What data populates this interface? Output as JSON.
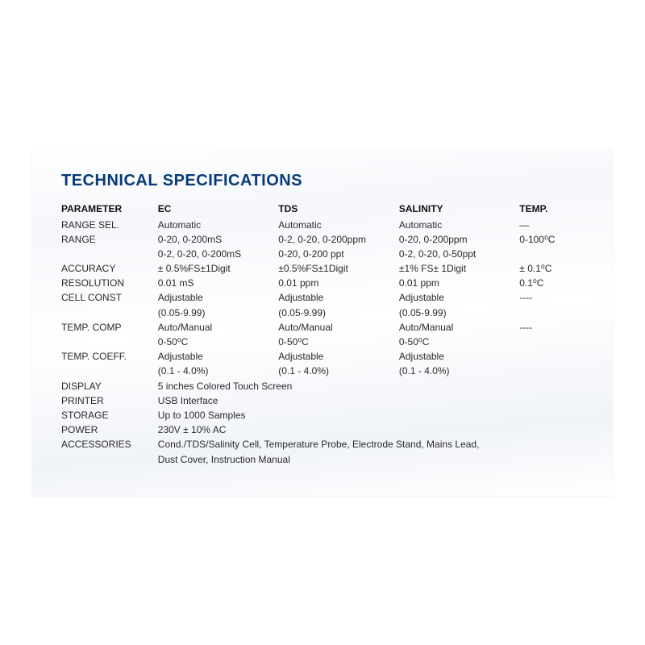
{
  "title": "TECHNICAL SPECIFICATIONS",
  "headers": {
    "parameter": "PARAMETER",
    "ec": "EC",
    "tds": "TDS",
    "salinity": "SALINITY",
    "temp": "TEMP."
  },
  "rows": {
    "range_sel": {
      "label": "RANGE SEL.",
      "ec": "Automatic",
      "tds": "Automatic",
      "salinity": "Automatic",
      "temp": "—"
    },
    "range": {
      "label": "RANGE",
      "ec_l1": "0-20, 0-200mS",
      "ec_l2": "0-2, 0-20, 0-200mS",
      "tds_l1": "0-2, 0-20, 0-200ppm",
      "tds_l2": "0-20, 0-200 ppt",
      "sal_l1": "0-20, 0-200ppm",
      "sal_l2": "0-2, 0-20, 0-50ppt",
      "temp": "0-100⁰C"
    },
    "accuracy": {
      "label": "ACCURACY",
      "ec": "± 0.5%FS±1Digit",
      "tds": "±0.5%FS±1Digit",
      "salinity": "±1% FS± 1Digit",
      "temp": "± 0.1⁰C"
    },
    "resolution": {
      "label": "RESOLUTION",
      "ec": "0.01 mS",
      "tds": "0.01 ppm",
      "salinity": "0.01 ppm",
      "temp": "0.1⁰C"
    },
    "cell_const": {
      "label": "CELL CONST",
      "ec_l1": "Adjustable",
      "ec_l2": "(0.05-9.99)",
      "tds_l1": "Adjustable",
      "tds_l2": "(0.05-9.99)",
      "sal_l1": "Adjustable",
      "sal_l2": "(0.05-9.99)",
      "temp": "----"
    },
    "temp_comp": {
      "label": "TEMP. COMP",
      "ec_l1": "Auto/Manual",
      "ec_l2": " 0-50⁰C",
      "tds_l1": "Auto/Manual",
      "tds_l2": "0-50⁰C",
      "sal_l1": "Auto/Manual",
      "sal_l2": "0-50⁰C",
      "temp": "----"
    },
    "temp_coeff": {
      "label": "TEMP. COEFF.",
      "ec_l1": "Adjustable",
      "ec_l2": "(0.1 - 4.0%)",
      "tds_l1": "Adjustable",
      "tds_l2": "(0.1 - 4.0%)",
      "sal_l1": "Adjustable",
      "sal_l2": "(0.1 - 4.0%)"
    },
    "display": {
      "label": "DISPLAY",
      "value": "5 inches Colored Touch Screen"
    },
    "printer": {
      "label": "PRINTER",
      "value": "USB Interface"
    },
    "storage": {
      "label": "STORAGE",
      "value": "Up to 1000 Samples"
    },
    "power": {
      "label": "POWER",
      "value": "230V ± 10% AC"
    },
    "accessories": {
      "label": "ACCESSORIES",
      "l1": "Cond./TDS/Salinity Cell, Temperature Probe, Electrode Stand, Mains Lead,",
      "l2": "Dust Cover, Instruction Manual"
    }
  },
  "colors": {
    "title": "#063a7a",
    "text": "#2a2a2a",
    "background": "#ffffff"
  },
  "font_sizes": {
    "title": 20,
    "body": 12
  }
}
